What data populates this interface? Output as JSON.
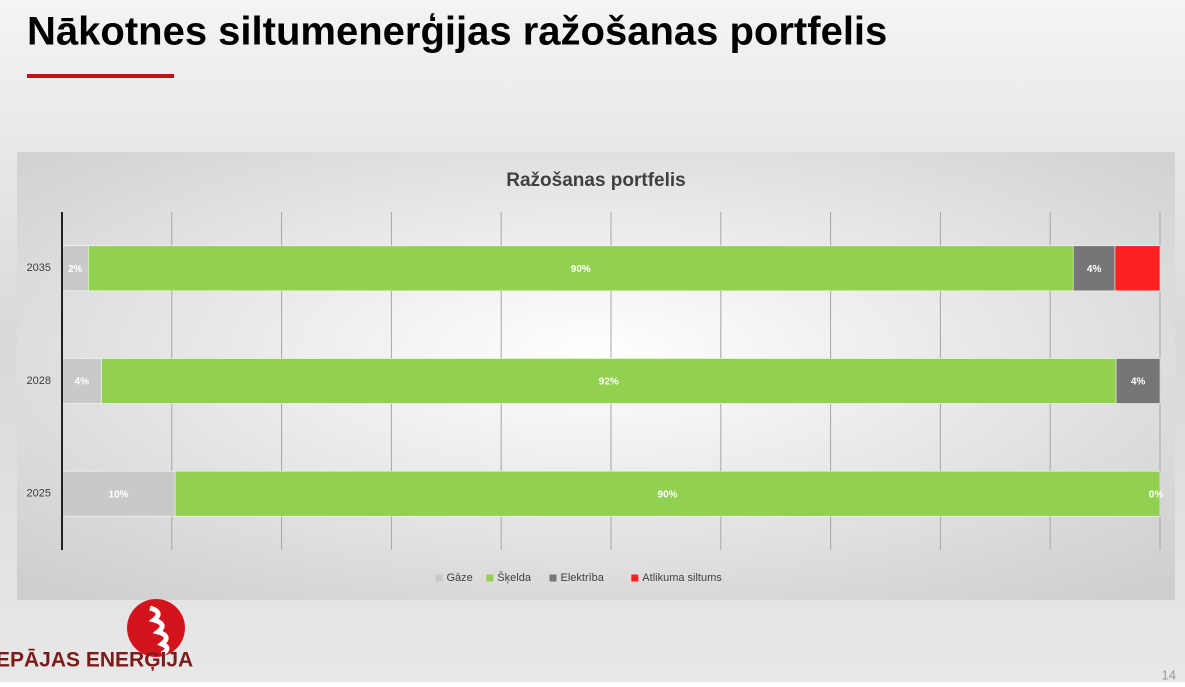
{
  "slide": {
    "title": "Nākotnes siltumenerģijas ražošanas portfelis",
    "logo_text": "EPĀJAS ENERĢIJA",
    "page_number": "14"
  },
  "chart_data": {
    "type": "stacked_barh",
    "title": "Ražošanas portfelis",
    "categories": [
      "2035",
      "2028",
      "2025"
    ],
    "series": [
      {
        "name": "Gāze",
        "color": "#c9c9c9",
        "values": [
          2.4,
          3.6,
          10.3
        ],
        "value_labels": [
          "2%",
          "4%",
          "10%"
        ]
      },
      {
        "name": "Šķelda",
        "color": "#92d050",
        "values": [
          89.7,
          92.4,
          89.7
        ],
        "value_labels": [
          "90%",
          "92%",
          "90%"
        ]
      },
      {
        "name": "Elektrība",
        "color": "#767676",
        "values": [
          3.8,
          4.0,
          0
        ],
        "value_labels": [
          "4%",
          "4%",
          "0%"
        ]
      },
      {
        "name": "Atlikuma siltums",
        "color": "#ff2121",
        "values": [
          4.1,
          0,
          0
        ],
        "value_labels": [
          null,
          null,
          null
        ]
      }
    ],
    "xlim": [
      0,
      100
    ],
    "xticks": [
      0,
      10,
      20,
      30,
      40,
      50,
      60,
      70,
      80,
      90,
      100
    ],
    "xtick_labels": false,
    "grid": true,
    "legend": "bottom"
  }
}
